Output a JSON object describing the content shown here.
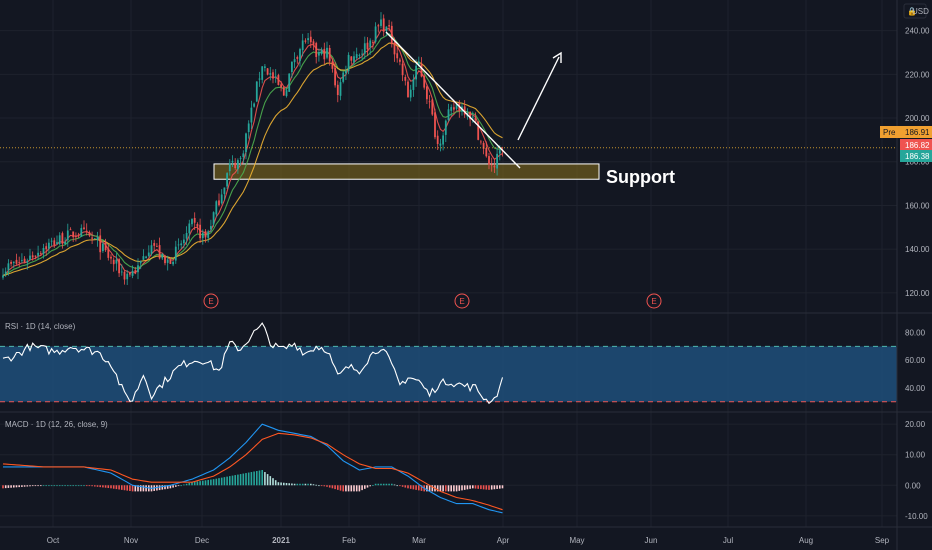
{
  "currency": "USD",
  "colors": {
    "background": "#131722",
    "grid": "#1e222d",
    "up": "#26a69a",
    "down": "#ef5350",
    "ma_fast": "#ef5350",
    "ma_mid": "#4caf50",
    "ma_slow": "#f0b232",
    "support_fill": "#6b5a1e",
    "rsi_band": "#1f4f7a",
    "macd_line": "#2196f3",
    "signal_line": "#ff5722"
  },
  "annotations": {
    "support_label": "Support",
    "earnings_marker": "E"
  },
  "price_badges": {
    "pre_label": "Pre",
    "pre_value": "186.91",
    "red_value": "186.82",
    "green_value": "186.38"
  },
  "indicators": {
    "rsi_title": "RSI · 1D (14, close)",
    "macd_title": "MACD · 1D (12, 26, close, 9)"
  },
  "chart_data": [
    {
      "type": "candlestick",
      "y_axis_ticks": [
        "240.00",
        "220.00",
        "200.00",
        "180.00",
        "160.00",
        "140.00",
        "120.00"
      ],
      "y_axis_values": [
        240,
        220,
        200,
        180,
        160,
        140,
        120
      ],
      "ylim": [
        114,
        254
      ],
      "x_axis_labels": [
        "Oct",
        "Nov",
        "Dec",
        "2021",
        "Feb",
        "Mar",
        "Apr",
        "May",
        "Jun",
        "Jul",
        "Aug",
        "Sep"
      ],
      "price_anchors": [
        [
          0,
          131
        ],
        [
          8,
          135
        ],
        [
          15,
          141
        ],
        [
          22,
          145
        ],
        [
          28,
          148
        ],
        [
          35,
          143
        ],
        [
          40,
          135
        ],
        [
          45,
          128
        ],
        [
          50,
          131
        ],
        [
          55,
          144
        ],
        [
          60,
          133
        ],
        [
          65,
          140
        ],
        [
          70,
          151
        ],
        [
          75,
          145
        ],
        [
          80,
          163
        ],
        [
          84,
          178
        ],
        [
          88,
          181
        ],
        [
          92,
          203
        ],
        [
          96,
          225
        ],
        [
          100,
          218
        ],
        [
          104,
          211
        ],
        [
          108,
          228
        ],
        [
          112,
          236
        ],
        [
          116,
          229
        ],
        [
          120,
          230
        ],
        [
          124,
          212
        ],
        [
          128,
          228
        ],
        [
          132,
          230
        ],
        [
          136,
          235
        ],
        [
          140,
          244
        ],
        [
          143,
          239
        ],
        [
          147,
          225
        ],
        [
          150,
          210
        ],
        [
          154,
          225
        ],
        [
          158,
          206
        ],
        [
          161,
          188
        ],
        [
          165,
          201
        ],
        [
          168,
          206
        ],
        [
          172,
          204
        ],
        [
          175,
          197
        ],
        [
          179,
          181
        ],
        [
          182,
          178
        ],
        [
          185,
          187
        ]
      ],
      "support_zone": [
        172,
        179
      ],
      "last_close": 186.38
    },
    {
      "type": "line",
      "name": "RSI · 1D (14, close)",
      "y_axis_ticks": [
        "80.00",
        "60.00",
        "40.00"
      ],
      "y_axis_values": [
        80,
        60,
        40
      ],
      "ylim": [
        24,
        92
      ],
      "band": [
        30,
        70
      ],
      "anchors": [
        [
          0,
          60
        ],
        [
          5,
          64
        ],
        [
          10,
          70
        ],
        [
          15,
          68
        ],
        [
          20,
          66
        ],
        [
          25,
          70
        ],
        [
          30,
          68
        ],
        [
          35,
          66
        ],
        [
          40,
          58
        ],
        [
          45,
          35
        ],
        [
          48,
          31
        ],
        [
          52,
          50
        ],
        [
          55,
          35
        ],
        [
          60,
          45
        ],
        [
          65,
          55
        ],
        [
          70,
          60
        ],
        [
          75,
          60
        ],
        [
          80,
          52
        ],
        [
          84,
          72
        ],
        [
          88,
          68
        ],
        [
          92,
          78
        ],
        [
          96,
          85
        ],
        [
          100,
          70
        ],
        [
          104,
          68
        ],
        [
          108,
          72
        ],
        [
          112,
          65
        ],
        [
          116,
          70
        ],
        [
          120,
          68
        ],
        [
          124,
          48
        ],
        [
          128,
          55
        ],
        [
          132,
          53
        ],
        [
          136,
          63
        ],
        [
          140,
          70
        ],
        [
          143,
          60
        ],
        [
          147,
          42
        ],
        [
          150,
          48
        ],
        [
          154,
          45
        ],
        [
          158,
          35
        ],
        [
          161,
          42
        ],
        [
          165,
          45
        ],
        [
          168,
          43
        ],
        [
          172,
          41
        ],
        [
          175,
          40
        ],
        [
          179,
          31
        ],
        [
          182,
          32
        ],
        [
          185,
          45
        ]
      ]
    },
    {
      "type": "macd",
      "name": "MACD · 1D (12, 26, close, 9)",
      "y_axis_ticks": [
        "20.00",
        "10.00",
        "0.00",
        "-10.00"
      ],
      "y_axis_values": [
        20,
        10,
        0,
        -10
      ],
      "ylim": [
        -13,
        23
      ],
      "macd_anchors": [
        [
          0,
          6
        ],
        [
          15,
          6
        ],
        [
          30,
          6
        ],
        [
          40,
          4
        ],
        [
          48,
          0
        ],
        [
          55,
          -1
        ],
        [
          62,
          0
        ],
        [
          70,
          2
        ],
        [
          78,
          5
        ],
        [
          84,
          9
        ],
        [
          90,
          14
        ],
        [
          96,
          20
        ],
        [
          102,
          18
        ],
        [
          108,
          17
        ],
        [
          114,
          16
        ],
        [
          120,
          13
        ],
        [
          126,
          8
        ],
        [
          132,
          5
        ],
        [
          138,
          6
        ],
        [
          144,
          6
        ],
        [
          150,
          3
        ],
        [
          156,
          -1
        ],
        [
          162,
          -4
        ],
        [
          168,
          -6
        ],
        [
          174,
          -6
        ],
        [
          180,
          -8
        ],
        [
          185,
          -9
        ]
      ],
      "signal_anchors": [
        [
          0,
          7
        ],
        [
          15,
          6
        ],
        [
          30,
          6
        ],
        [
          40,
          5
        ],
        [
          48,
          2
        ],
        [
          55,
          1
        ],
        [
          62,
          1
        ],
        [
          70,
          1
        ],
        [
          78,
          3
        ],
        [
          84,
          6
        ],
        [
          90,
          10
        ],
        [
          96,
          15
        ],
        [
          102,
          17
        ],
        [
          108,
          16.5
        ],
        [
          114,
          15.5
        ],
        [
          120,
          13.5
        ],
        [
          126,
          10
        ],
        [
          132,
          7
        ],
        [
          138,
          5.5
        ],
        [
          144,
          5.5
        ],
        [
          150,
          4
        ],
        [
          156,
          1
        ],
        [
          162,
          -2
        ],
        [
          168,
          -4
        ],
        [
          174,
          -5
        ],
        [
          180,
          -6.5
        ],
        [
          185,
          -8
        ]
      ]
    }
  ]
}
